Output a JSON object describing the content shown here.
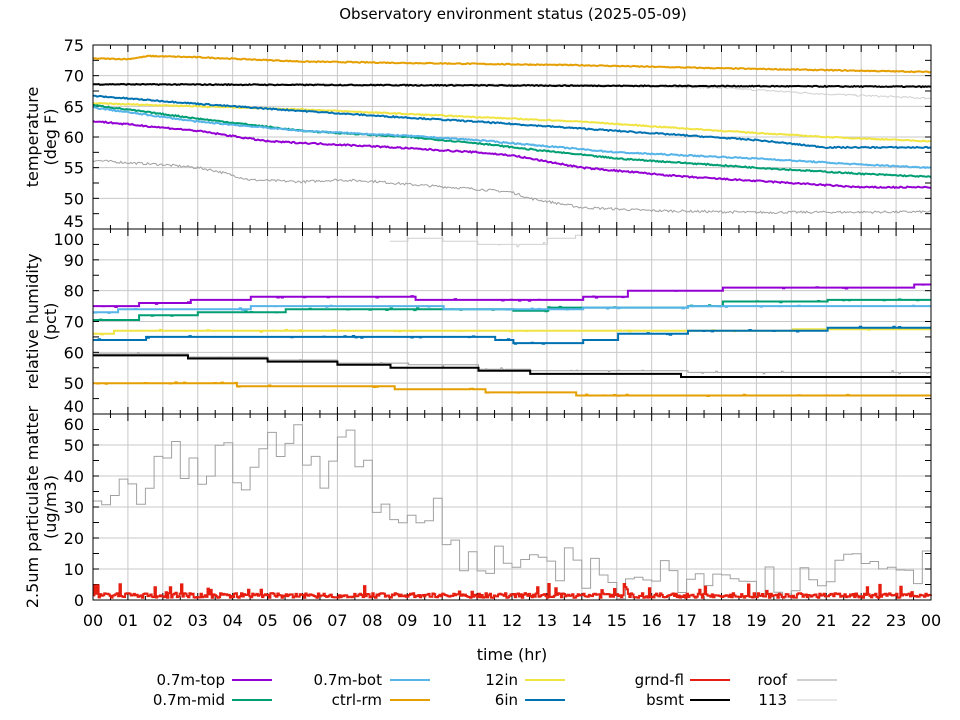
{
  "chart_data": {
    "title": "Observatory environment status (2025-05-09)",
    "xlabel": "time (hr)",
    "x_ticks": [
      "00",
      "01",
      "02",
      "03",
      "04",
      "05",
      "06",
      "07",
      "08",
      "09",
      "10",
      "11",
      "12",
      "13",
      "14",
      "15",
      "16",
      "17",
      "18",
      "19",
      "20",
      "21",
      "22",
      "23",
      "00"
    ],
    "xlim": [
      0,
      24
    ],
    "legend": [
      {
        "name": "0.7m-top",
        "color": "#9400d3"
      },
      {
        "name": "0.7m-mid",
        "color": "#009e73"
      },
      {
        "name": "0.7m-bot",
        "color": "#56b4e9"
      },
      {
        "name": "ctrl-rm",
        "color": "#e69f00"
      },
      {
        "name": "12in",
        "color": "#f0e442"
      },
      {
        "name": "6in",
        "color": "#0072b2"
      },
      {
        "name": "grnd-fl",
        "color": "#e51e10"
      },
      {
        "name": "bsmt",
        "color": "#000000"
      },
      {
        "name": "roof",
        "color": "#a0a0a0"
      },
      {
        "name": "113",
        "color": "#d0d0d0"
      }
    ],
    "legend_placement": "bottom",
    "panels": [
      {
        "type": "line",
        "ylabel": [
          "temperature",
          "(deg F)"
        ],
        "ylim": [
          45,
          75
        ],
        "yticks": [
          45,
          50,
          55,
          60,
          65,
          70,
          75
        ],
        "mode": "linear",
        "series": [
          {
            "name": "113",
            "pts": [
              [
                0,
                68.6
              ],
              [
                14,
                68.5
              ],
              [
                18,
                68
              ],
              [
                21,
                67
              ],
              [
                24,
                66.3
              ]
            ],
            "noise": 0.15
          },
          {
            "name": "roof",
            "pts": [
              [
                0,
                56.2
              ],
              [
                1,
                55.8
              ],
              [
                2,
                55.5
              ],
              [
                3,
                55
              ],
              [
                3.5,
                54.5
              ],
              [
                4.5,
                53
              ],
              [
                6,
                52.7
              ],
              [
                7,
                53
              ],
              [
                8,
                52.8
              ],
              [
                9,
                52.3
              ],
              [
                11,
                51.5
              ],
              [
                12,
                51
              ],
              [
                12.5,
                50
              ],
              [
                14,
                48.5
              ],
              [
                16,
                48
              ],
              [
                19,
                47.7
              ],
              [
                24,
                47.8
              ]
            ],
            "noise": 0.2
          },
          {
            "name": "ctrl-rm",
            "pts": [
              [
                0,
                72.8
              ],
              [
                1,
                72.7
              ],
              [
                1.6,
                73.2
              ],
              [
                3,
                73
              ],
              [
                6,
                72.3
              ],
              [
                10,
                72
              ],
              [
                14,
                71.7
              ],
              [
                18,
                71.2
              ],
              [
                22,
                70.8
              ],
              [
                24,
                70.6
              ]
            ],
            "noise": 0.08
          },
          {
            "name": "bsmt",
            "pts": [
              [
                0,
                68.6
              ],
              [
                12,
                68.4
              ],
              [
                24,
                68.2
              ]
            ],
            "noise": 0.08
          },
          {
            "name": "12in",
            "pts": [
              [
                0,
                65.5
              ],
              [
                6,
                64.5
              ],
              [
                10,
                63.5
              ],
              [
                14,
                62.5
              ],
              [
                18,
                61
              ],
              [
                21,
                60
              ],
              [
                24,
                59.3
              ]
            ],
            "noise": 0.08
          },
          {
            "name": "6in",
            "pts": [
              [
                0,
                66.7
              ],
              [
                4,
                65
              ],
              [
                8,
                63.5
              ],
              [
                11,
                62.5
              ],
              [
                15,
                61
              ],
              [
                19,
                59.5
              ],
              [
                21,
                58.3
              ],
              [
                24,
                58.3
              ]
            ],
            "noise": 0.1
          },
          {
            "name": "0.7m-mid",
            "pts": [
              [
                0,
                65.2
              ],
              [
                3,
                63
              ],
              [
                6,
                61
              ],
              [
                9,
                60
              ],
              [
                11,
                59
              ],
              [
                12.5,
                58
              ],
              [
                15,
                56.5
              ],
              [
                19,
                55
              ],
              [
                22,
                54
              ],
              [
                24,
                53.5
              ]
            ],
            "noise": 0.1
          },
          {
            "name": "0.7m-bot",
            "pts": [
              [
                0,
                64.8
              ],
              [
                3,
                62.5
              ],
              [
                6,
                61
              ],
              [
                9,
                60.2
              ],
              [
                11,
                59.5
              ],
              [
                13,
                58.5
              ],
              [
                15,
                57.5
              ],
              [
                19,
                56.5
              ],
              [
                22,
                55.5
              ],
              [
                24,
                55
              ]
            ],
            "noise": 0.1
          },
          {
            "name": "0.7m-top",
            "pts": [
              [
                0,
                62.6
              ],
              [
                3,
                61
              ],
              [
                5,
                59.3
              ],
              [
                8,
                58.5
              ],
              [
                11,
                57.5
              ],
              [
                12,
                57
              ],
              [
                14,
                55
              ],
              [
                17,
                53.5
              ],
              [
                20,
                52.5
              ],
              [
                22,
                51.8
              ],
              [
                24,
                51.8
              ]
            ],
            "noise": 0.12
          }
        ]
      },
      {
        "type": "line",
        "ylabel": [
          "relative humidity",
          "(pct)"
        ],
        "ylim": [
          40,
          100
        ],
        "yticks": [
          40,
          50,
          60,
          70,
          80,
          90,
          100
        ],
        "mode": "step",
        "series": [
          {
            "name": "113",
            "pts": [
              [
                8.5,
                96
              ],
              [
                9,
                97
              ],
              [
                10,
                96
              ],
              [
                11,
                95
              ],
              [
                12,
                95
              ],
              [
                13,
                97
              ],
              [
                13.8,
                98
              ],
              [
                14,
                100
              ]
            ],
            "noise": 0.3
          },
          {
            "name": "roof",
            "pts": [
              [
                0,
                59.5
              ],
              [
                2.7,
                58.5
              ],
              [
                5,
                57.5
              ],
              [
                7,
                56.5
              ],
              [
                9,
                56
              ],
              [
                11,
                54.5
              ],
              [
                12.5,
                54
              ],
              [
                17,
                53.5
              ],
              [
                24,
                52.5
              ]
            ],
            "noise": 0.2
          },
          {
            "name": "ctrl-rm",
            "pts": [
              [
                0,
                50
              ],
              [
                4.1,
                49
              ],
              [
                8.6,
                48
              ],
              [
                11.2,
                47
              ],
              [
                13.8,
                46
              ],
              [
                24,
                46
              ]
            ],
            "noise": 0.1
          },
          {
            "name": "bsmt",
            "pts": [
              [
                0,
                59
              ],
              [
                2.7,
                58
              ],
              [
                5,
                57
              ],
              [
                7,
                56
              ],
              [
                8.5,
                55
              ],
              [
                11,
                54
              ],
              [
                12.5,
                53
              ],
              [
                16.8,
                52
              ],
              [
                24,
                52
              ]
            ],
            "noise": 0
          },
          {
            "name": "12in",
            "pts": [
              [
                0,
                66
              ],
              [
                0.6,
                67
              ],
              [
                17,
                67
              ],
              [
                20,
                67.5
              ],
              [
                24,
                67.5
              ]
            ],
            "noise": 0.1
          },
          {
            "name": "6in",
            "pts": [
              [
                0,
                64
              ],
              [
                1.5,
                65
              ],
              [
                11.5,
                64
              ],
              [
                12,
                63
              ],
              [
                14,
                64
              ],
              [
                15,
                66
              ],
              [
                17,
                67
              ],
              [
                21,
                68
              ],
              [
                24,
                68
              ]
            ],
            "noise": 0.1
          },
          {
            "name": "0.7m-mid",
            "pts": [
              [
                0,
                70.5
              ],
              [
                1.3,
                72
              ],
              [
                3,
                73
              ],
              [
                5.5,
                74
              ],
              [
                12,
                73.5
              ],
              [
                13,
                74.5
              ],
              [
                17,
                75
              ],
              [
                18,
                76.5
              ],
              [
                21,
                77
              ],
              [
                24,
                77
              ]
            ],
            "noise": 0.1
          },
          {
            "name": "0.7m-bot",
            "pts": [
              [
                0,
                73
              ],
              [
                0.7,
                74
              ],
              [
                4.5,
                75
              ],
              [
                10,
                74
              ],
              [
                14,
                74.5
              ],
              [
                17,
                75
              ],
              [
                24,
                75
              ]
            ],
            "noise": 0.1
          },
          {
            "name": "0.7m-top",
            "pts": [
              [
                0,
                75
              ],
              [
                1.3,
                76
              ],
              [
                2.8,
                77
              ],
              [
                4.5,
                78
              ],
              [
                9.2,
                77
              ],
              [
                14,
                78
              ],
              [
                15.3,
                80
              ],
              [
                18,
                81
              ],
              [
                23.5,
                82
              ],
              [
                24,
                82
              ]
            ],
            "noise": 0.1
          }
        ]
      },
      {
        "type": "line",
        "ylabel": [
          "2.5um particulate matter",
          "(ug/m3)"
        ],
        "ylim": [
          0,
          60
        ],
        "yticks": [
          0,
          10,
          20,
          30,
          40,
          50,
          60
        ],
        "mode": "step",
        "series": [
          {
            "name": "roof",
            "pts": [
              [
                0,
                30
              ],
              [
                0.5,
                38
              ],
              [
                1,
                32
              ],
              [
                1.5,
                42
              ],
              [
                2,
                50
              ],
              [
                2.5,
                42
              ],
              [
                3,
                40
              ],
              [
                3.5,
                45
              ],
              [
                4,
                38
              ],
              [
                4.5,
                48
              ],
              [
                5,
                52
              ],
              [
                5.5,
                55
              ],
              [
                6,
                48
              ],
              [
                6.5,
                42
              ],
              [
                7,
                50
              ],
              [
                7.5,
                40
              ],
              [
                8,
                25
              ],
              [
                9,
                27
              ],
              [
                10,
                15
              ],
              [
                11,
                12
              ],
              [
                12,
                13
              ],
              [
                13,
                11
              ],
              [
                14,
                9
              ],
              [
                15,
                6
              ],
              [
                16,
                7
              ],
              [
                17,
                6
              ],
              [
                18,
                7
              ],
              [
                19,
                5
              ],
              [
                20,
                7
              ],
              [
                21,
                9
              ],
              [
                22,
                8
              ],
              [
                23,
                10
              ],
              [
                24,
                10
              ]
            ],
            "noise": 6
          },
          {
            "name": "grnd-fl",
            "pts": [
              [
                0,
                1.5
              ],
              [
                24,
                1.5
              ]
            ],
            "noise": 1.5
          }
        ]
      }
    ]
  }
}
